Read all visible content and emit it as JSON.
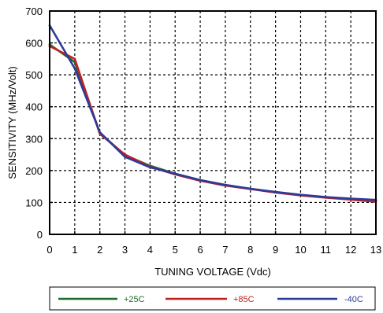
{
  "chart_data": {
    "type": "line",
    "title": "",
    "xlabel": "TUNING VOLTAGE (Vdc)",
    "ylabel": "SENSITIVITY (MHz/Volt)",
    "xlim": [
      0,
      13
    ],
    "ylim": [
      0,
      700
    ],
    "x_ticks": [
      "0",
      "1",
      "2",
      "3",
      "4",
      "5",
      "6",
      "7",
      "8",
      "9",
      "10",
      "11",
      "12",
      "13"
    ],
    "y_ticks": [
      "0",
      "100",
      "200",
      "300",
      "400",
      "500",
      "600",
      "700"
    ],
    "grid": "dashed",
    "legend_position": "bottom",
    "series": [
      {
        "name": "+25C",
        "color": "#1e6b2e",
        "x": [
          0,
          1,
          2,
          3,
          4,
          5,
          6,
          7,
          8,
          9,
          10,
          11,
          12,
          13
        ],
        "y": [
          595,
          540,
          318,
          248,
          215,
          190,
          170,
          155,
          143,
          132,
          123,
          116,
          110,
          105
        ]
      },
      {
        "name": "+85C",
        "color": "#c02020",
        "x": [
          0,
          1,
          2,
          3,
          4,
          5,
          6,
          7,
          8,
          9,
          10,
          11,
          12,
          13
        ],
        "y": [
          590,
          550,
          315,
          250,
          212,
          188,
          168,
          153,
          142,
          131,
          122,
          115,
          109,
          102
        ]
      },
      {
        "name": "-40C",
        "color": "#2c3a9c",
        "x": [
          0,
          1,
          2,
          3,
          4,
          5,
          6,
          7,
          8,
          9,
          10,
          11,
          12,
          13
        ],
        "y": [
          655,
          520,
          320,
          243,
          210,
          190,
          170,
          155,
          143,
          133,
          124,
          117,
          112,
          108
        ]
      }
    ]
  }
}
